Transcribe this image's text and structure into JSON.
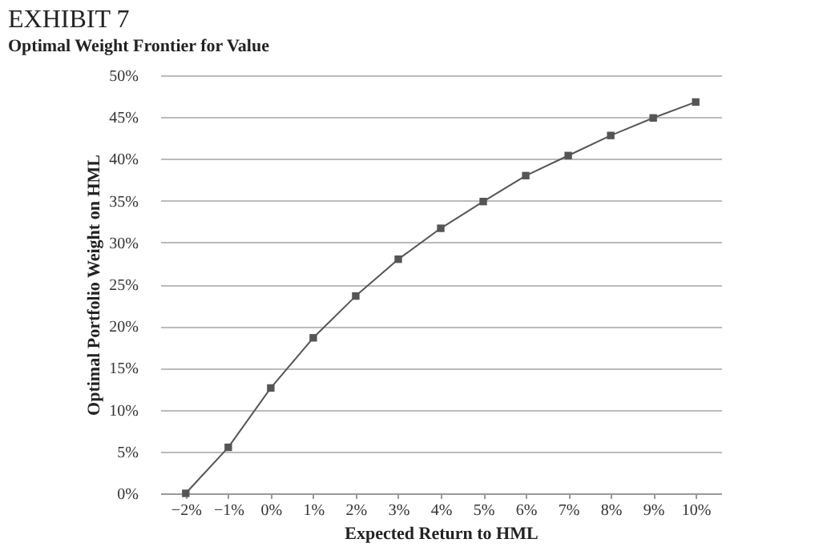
{
  "chart_data": {
    "type": "line",
    "title": "EXHIBIT 7",
    "subtitle": "Optimal Weight Frontier for Value",
    "xlabel": "Expected Return to HML",
    "ylabel": "Optimal Portfolio Weight on HML",
    "categories": [
      "−2%",
      "−1%",
      "0%",
      "1%",
      "2%",
      "3%",
      "4%",
      "5%",
      "6%",
      "7%",
      "8%",
      "9%",
      "10%"
    ],
    "series": [
      {
        "color": "#555555",
        "values": [
          0,
          5.5,
          12.6,
          18.6,
          23.6,
          28.0,
          31.7,
          34.9,
          38.0,
          40.4,
          42.8,
          44.9,
          46.8
        ]
      }
    ],
    "ylim": [
      0,
      50
    ],
    "yticks": [
      {
        "value": 0,
        "label": "0%"
      },
      {
        "value": 5,
        "label": "5%"
      },
      {
        "value": 10,
        "label": "10%"
      },
      {
        "value": 15,
        "label": "15%"
      },
      {
        "value": 20,
        "label": "20%"
      },
      {
        "value": 25,
        "label": "25%"
      },
      {
        "value": 30,
        "label": "30%"
      },
      {
        "value": 35,
        "label": "35%"
      },
      {
        "value": 40,
        "label": "40%"
      },
      {
        "value": 45,
        "label": "45%"
      },
      {
        "value": 50,
        "label": "50%"
      }
    ],
    "grid": "y",
    "marker": "square",
    "line_style": "solid",
    "legend": false
  }
}
